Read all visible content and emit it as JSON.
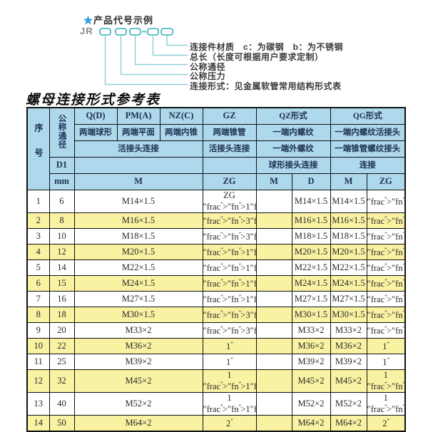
{
  "colors": {
    "header_bg": "#aed8ec",
    "alt_row": "#f8f2a2",
    "border": "#111111",
    "box_stroke": "#2fb0c4",
    "connector": "#8fd0da",
    "star": "#2b9fd6",
    "header_text": "#1c3050",
    "body_text": "#2a2a2a"
  },
  "diagram": {
    "star": "★",
    "title": "产品代号示例",
    "prefix": "JR",
    "labels": [
      "连接件材质　c：为碳钢　b：为不锈钢",
      "总长（长度可根据用户要求定制）",
      "公称通径",
      "公称压力",
      "连接形式：见金属软管常用结构形式表"
    ]
  },
  "table": {
    "title": "螺母连接形式参考表",
    "header": {
      "seq": "序号",
      "dn_label": "公称通径",
      "d1": "D1",
      "mm": "mm",
      "col_q": "Q(D)",
      "col_pm": "PM(A)",
      "col_nz": "NZ(C)",
      "col_gz": "GZ",
      "col_qz": "QZ形式",
      "col_qg": "QG形式",
      "desc_q": "两端球形",
      "desc_pm": "两端平面",
      "desc_nz": "两端内锥",
      "desc_gz": "两端锥管",
      "desc_qz": "一端内螺纹",
      "desc_qg": "一端内螺纹活接头",
      "row3_union": "活接头连接",
      "row3_gz": "活接头连接",
      "row3_qz": "一端外螺纹",
      "row3_qg": "一端锥管螺纹接头",
      "row4_qz": "球形接头连接",
      "row4_qg": "连接",
      "u_m": "M",
      "u_zg": "ZG",
      "u_qz_m": "M",
      "u_qz_d": "D",
      "u_qg_m": "M",
      "u_qg_zg": "ZG"
    },
    "rows": [
      [
        "1",
        "6",
        "M14×1.5",
        "ZG 1/4\"",
        "",
        "M14×1.5",
        "M14×1.5",
        "1/4\""
      ],
      [
        "2",
        "8",
        "M16×1.5",
        "3/8\"",
        "",
        "M16×1.5",
        "M16×1.5",
        "3/8\""
      ],
      [
        "3",
        "10",
        "M18×1.5",
        "3/8\"",
        "",
        "M18×1.5",
        "M18×1.5",
        "3/8\""
      ],
      [
        "4",
        "12",
        "M20×1.5",
        "1/2\"",
        "",
        "M20×1.5",
        "M20×1.5",
        "1/2\""
      ],
      [
        "5",
        "14",
        "M22×1.5",
        "1/2\"",
        "",
        "M22×1.5",
        "M22×1.5",
        "1/2\""
      ],
      [
        "6",
        "15",
        "M24×1.5",
        "1/2\"",
        "",
        "M24×1.5",
        "M24×1.5",
        "1/2\""
      ],
      [
        "7",
        "16",
        "M27×1.5",
        "1/2\"",
        "",
        "M27×1.5",
        "M27×1.5",
        "1/2\""
      ],
      [
        "8",
        "18",
        "M30×1.5",
        "3/4\"",
        "",
        "M30×1.5",
        "M30×1.5",
        "3/4\""
      ],
      [
        "9",
        "20",
        "M33×2",
        "3/4\"",
        "",
        "M33×2",
        "M33×2",
        "3/4\""
      ],
      [
        "10",
        "22",
        "M36×2",
        "1\"",
        "",
        "M36×2",
        "M36×2",
        "1\""
      ],
      [
        "11",
        "25",
        "M39×2",
        "1\"",
        "",
        "M39×2",
        "M39×2",
        "1\""
      ],
      [
        "12",
        "32",
        "M45×2",
        "1 1/4\"",
        "",
        "M45×2",
        "M45×2",
        "1 1/4\""
      ],
      [
        "13",
        "40",
        "M52×2",
        "1 1/2\"",
        "",
        "M52×2",
        "M52×2",
        "1 1/2\""
      ],
      [
        "14",
        "50",
        "M64×2",
        "2\"",
        "",
        "M64×2",
        "M64×2",
        "2\""
      ]
    ]
  }
}
